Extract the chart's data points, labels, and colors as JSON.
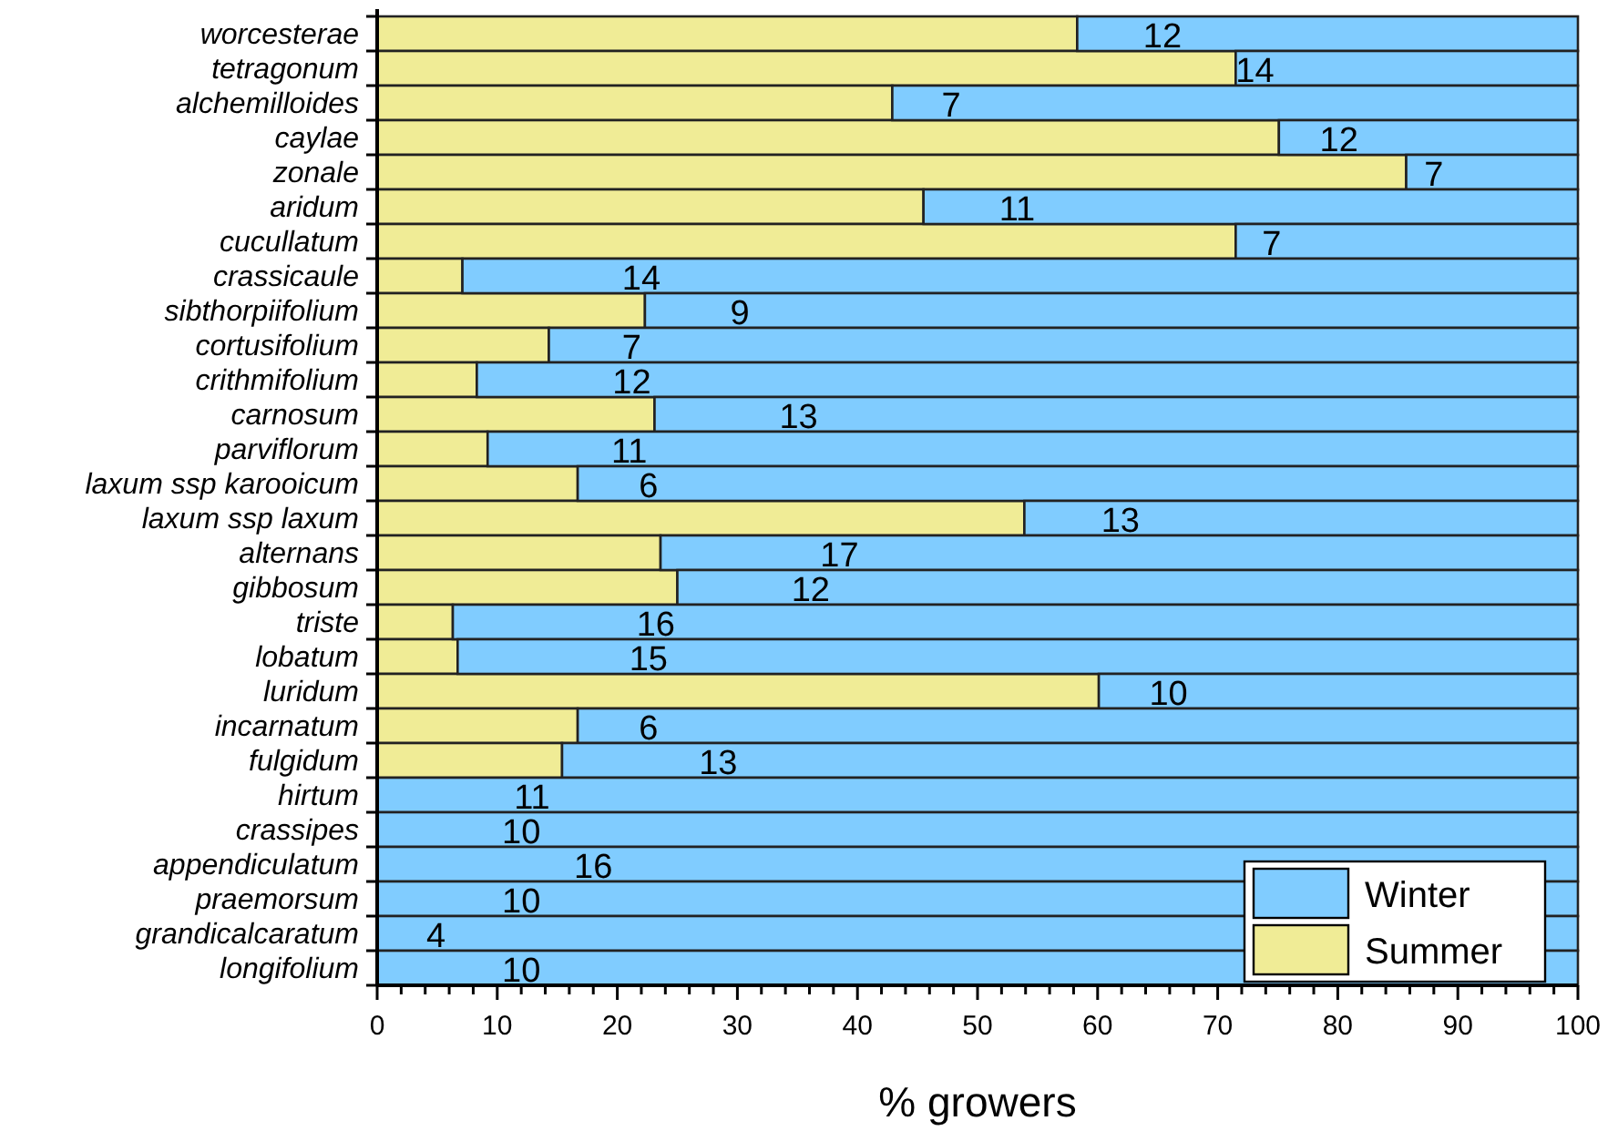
{
  "chart_data": {
    "type": "bar",
    "orientation": "horizontal",
    "stacked": true,
    "xlabel": "% growers",
    "categories": [
      "worcesterae",
      "tetragonum",
      "alchemilloides",
      "caylae",
      "zonale",
      "aridum",
      "cucullatum",
      "crassicaule",
      "sibthorpiifolium",
      "cortusifolium",
      "crithmifolium",
      "carnosum",
      "parviflorum",
      "laxum ssp karooicum",
      "laxum ssp laxum",
      "alternans",
      "gibbosum",
      "triste",
      "lobatum",
      "luridum",
      "incarnatum",
      "fulgidum",
      "hirtum",
      "crassipes",
      "appendiculatum",
      "praemorsum",
      "grandicalcaratum",
      "longifolium"
    ],
    "series": [
      {
        "name": "Summer",
        "color": "#f0ec96",
        "values": [
          58.3,
          71.5,
          42.9,
          75.1,
          85.7,
          45.5,
          71.5,
          7.1,
          22.3,
          14.3,
          8.3,
          23.1,
          9.2,
          16.7,
          53.9,
          23.6,
          25.0,
          6.3,
          6.7,
          60.1,
          16.7,
          15.4,
          0,
          0,
          0,
          0,
          0,
          0
        ]
      },
      {
        "name": "Winter",
        "color": "#80ccff",
        "values": [
          41.7,
          28.5,
          57.1,
          24.9,
          14.3,
          54.5,
          28.5,
          92.9,
          77.7,
          85.7,
          91.7,
          76.9,
          90.8,
          83.3,
          46.1,
          76.4,
          75.0,
          93.7,
          93.3,
          39.9,
          83.3,
          84.6,
          100,
          100,
          100,
          100,
          100,
          100
        ]
      }
    ],
    "xlim": [
      0,
      100
    ],
    "xticks": [
      0,
      {
        "value": 2,
        "label": null
      },
      {
        "value": 4,
        "label": null
      },
      {
        "value": 6,
        "label": null
      },
      {
        "value": 8,
        "label": null
      },
      10,
      {
        "value": 12,
        "label": null
      },
      {
        "value": 14,
        "label": null
      },
      {
        "value": 16,
        "label": null
      },
      {
        "value": 18,
        "label": null
      },
      20,
      {
        "value": 22,
        "label": null
      },
      {
        "value": 24,
        "label": null
      },
      {
        "value": 26,
        "label": null
      },
      {
        "value": 28,
        "label": null
      },
      30,
      {
        "value": 32,
        "label": null
      },
      {
        "value": 34,
        "label": null
      },
      {
        "value": 36,
        "label": null
      },
      {
        "value": 38,
        "label": null
      },
      40,
      {
        "value": 42,
        "label": null
      },
      {
        "value": 44,
        "label": null
      },
      {
        "value": 46,
        "label": null
      },
      {
        "value": 48,
        "label": null
      },
      50,
      {
        "value": 52,
        "label": null
      },
      {
        "value": 54,
        "label": null
      },
      {
        "value": 56,
        "label": null
      },
      {
        "value": 58,
        "label": null
      },
      60,
      {
        "value": 62,
        "label": null
      },
      {
        "value": 64,
        "label": null
      },
      {
        "value": 66,
        "label": null
      },
      {
        "value": 68,
        "label": null
      },
      70,
      {
        "value": 72,
        "label": null
      },
      {
        "value": 74,
        "label": null
      },
      {
        "value": 76,
        "label": null
      },
      {
        "value": 78,
        "label": null
      },
      80,
      {
        "value": 82,
        "label": null
      },
      {
        "value": 84,
        "label": null
      },
      {
        "value": 86,
        "label": null
      },
      {
        "value": 88,
        "label": null
      },
      90,
      {
        "value": 92,
        "label": null
      },
      {
        "value": 94,
        "label": null
      },
      {
        "value": 96,
        "label": null
      },
      {
        "value": 98,
        "label": null
      },
      100
    ],
    "legend": "bottom right",
    "annotations": [
      {
        "text": "12",
        "x": 65.4,
        "y": "worcesterae"
      },
      {
        "text": "14",
        "x": 73.1,
        "y": "tetragonum"
      },
      {
        "text": "7",
        "x": 47.8,
        "y": "alchemilloides"
      },
      {
        "text": "12",
        "x": 80.1,
        "y": "caylae"
      },
      {
        "text": "7",
        "x": 88.0,
        "y": "zonale"
      },
      {
        "text": "11",
        "x": 53.3,
        "y": "aridum"
      },
      {
        "text": "7",
        "x": 74.5,
        "y": "cucullatum"
      },
      {
        "text": "14",
        "x": 22.0,
        "y": "crassicaule"
      },
      {
        "text": "9",
        "x": 30.2,
        "y": "sibthorpiifolium"
      },
      {
        "text": "7",
        "x": 21.2,
        "y": "cortusifolium"
      },
      {
        "text": "12",
        "x": 21.2,
        "y": "crithmifolium"
      },
      {
        "text": "13",
        "x": 35.1,
        "y": "carnosum"
      },
      {
        "text": "11",
        "x": 21.0,
        "y": "parviflorum"
      },
      {
        "text": "6",
        "x": 22.6,
        "y": "laxum ssp karooicum"
      },
      {
        "text": "13",
        "x": 61.9,
        "y": "laxum ssp laxum"
      },
      {
        "text": "17",
        "x": 38.5,
        "y": "alternans"
      },
      {
        "text": "12",
        "x": 36.1,
        "y": "gibbosum"
      },
      {
        "text": "16",
        "x": 23.2,
        "y": "triste"
      },
      {
        "text": "15",
        "x": 22.6,
        "y": "lobatum"
      },
      {
        "text": "10",
        "x": 65.9,
        "y": "luridum"
      },
      {
        "text": "6",
        "x": 22.6,
        "y": "incarnatum"
      },
      {
        "text": "13",
        "x": 28.4,
        "y": "fulgidum"
      },
      {
        "text": "11",
        "x": 12.9,
        "y": "hirtum"
      },
      {
        "text": "10",
        "x": 12.0,
        "y": "crassipes"
      },
      {
        "text": "16",
        "x": 18.0,
        "y": "appendiculatum"
      },
      {
        "text": "10",
        "x": 12.0,
        "y": "praemorsum"
      },
      {
        "text": "4",
        "x": 4.9,
        "y": "grandicalcaratum"
      },
      {
        "text": "10",
        "x": 12.0,
        "y": "longifolium"
      }
    ]
  }
}
